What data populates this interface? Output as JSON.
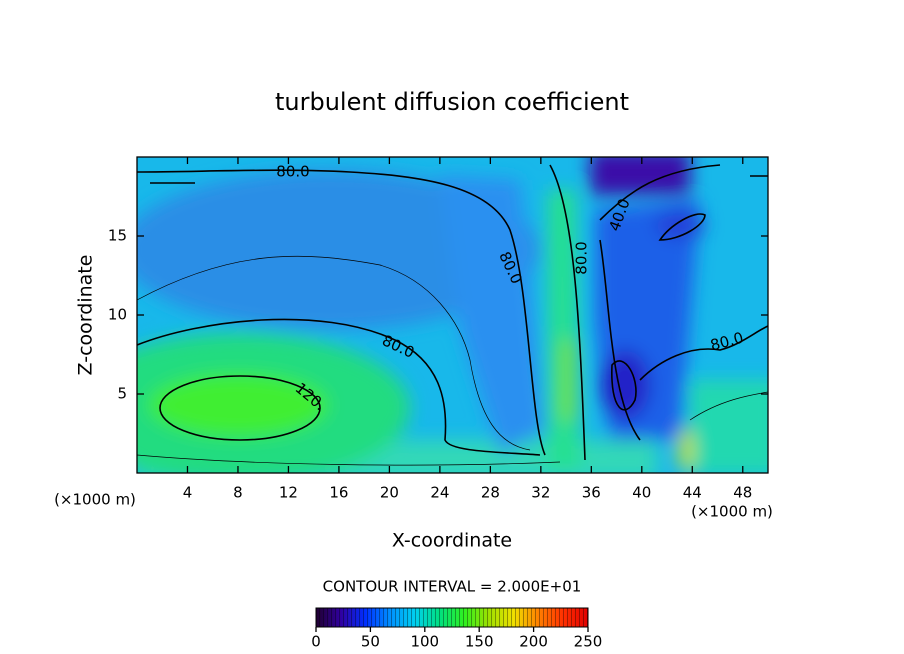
{
  "chart_data": {
    "type": "contour",
    "title": "turbulent diffusion coefficient",
    "xlabel": "X-coordinate",
    "ylabel": "Z-coordinate",
    "x_unit_label": "(×1000 m)",
    "xlim": [
      0,
      50
    ],
    "ylim": [
      0,
      20
    ],
    "xticks": [
      4,
      8,
      12,
      16,
      20,
      24,
      28,
      32,
      36,
      40,
      44,
      48
    ],
    "yticks": [
      5,
      10,
      15
    ],
    "contour_interval_label": "CONTOUR INTERVAL = 2.000E+01",
    "contour_labels": [
      "80.0",
      "80.0",
      "80.0",
      "80.0",
      "80.0",
      "40.0",
      "120."
    ],
    "colorbar": {
      "lim": [
        0,
        250
      ],
      "ticks": [
        0,
        50,
        100,
        150,
        200,
        250
      ],
      "colors": [
        "#200030",
        "#3000a0",
        "#0030ff",
        "#0090ff",
        "#00d0f0",
        "#00e080",
        "#30f020",
        "#a0e000",
        "#f0e000",
        "#ff8000",
        "#ff3000",
        "#e00000"
      ]
    }
  }
}
